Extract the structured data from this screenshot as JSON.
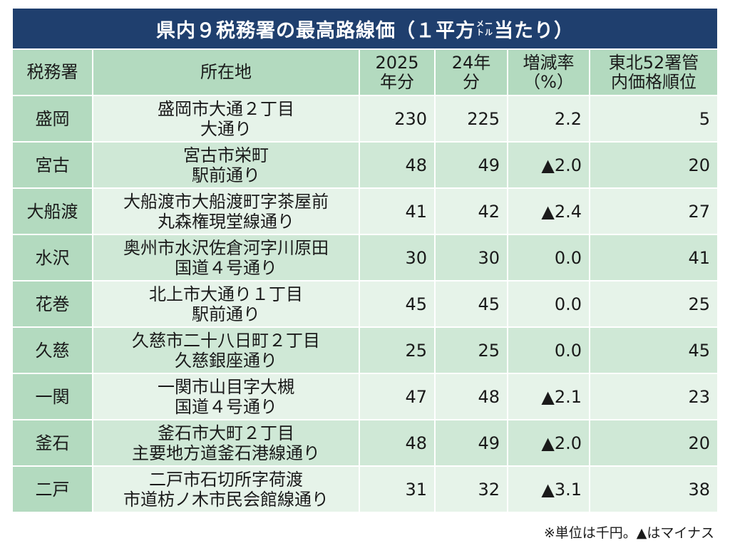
{
  "title": {
    "main": "県内９税務署の最高路線価（１平方",
    "unit_top": "メー",
    "unit_bottom": "トル",
    "suffix": "当たり）"
  },
  "headers": {
    "office": "税務署",
    "location": "所在地",
    "year2025_line1": "2025",
    "year2025_line2": "年分",
    "year24_line1": "24年",
    "year24_line2": "分",
    "change_line1": "増減率",
    "change_line2": "（%）",
    "rank_line1": "東北52署管",
    "rank_line2": "内価格順位"
  },
  "rows": [
    {
      "office": "盛岡",
      "loc1": "盛岡市大通２丁目",
      "loc2": "大通り",
      "v2025": "230",
      "v24": "225",
      "change": "2.2",
      "rank": "5"
    },
    {
      "office": "宮古",
      "loc1": "宮古市栄町",
      "loc2": "駅前通り",
      "v2025": "48",
      "v24": "49",
      "change": "▲2.0",
      "rank": "20"
    },
    {
      "office": "大船渡",
      "loc1": "大船渡市大船渡町字茶屋前",
      "loc2": "丸森権現堂線通り",
      "v2025": "41",
      "v24": "42",
      "change": "▲2.4",
      "rank": "27"
    },
    {
      "office": "水沢",
      "loc1": "奥州市水沢佐倉河字川原田",
      "loc2": "国道４号通り",
      "v2025": "30",
      "v24": "30",
      "change": "0.0",
      "rank": "41"
    },
    {
      "office": "花巻",
      "loc1": "北上市大通り１丁目",
      "loc2": "駅前通り",
      "v2025": "45",
      "v24": "45",
      "change": "0.0",
      "rank": "25"
    },
    {
      "office": "久慈",
      "loc1": "久慈市二十八日町２丁目",
      "loc2": "久慈銀座通り",
      "v2025": "25",
      "v24": "25",
      "change": "0.0",
      "rank": "45"
    },
    {
      "office": "一関",
      "loc1": "一関市山目字大槻",
      "loc2": "国道４号通り",
      "v2025": "47",
      "v24": "48",
      "change": "▲2.1",
      "rank": "23"
    },
    {
      "office": "釜石",
      "loc1": "釜石市大町２丁目",
      "loc2": "主要地方道釜石港線通り",
      "v2025": "48",
      "v24": "49",
      "change": "▲2.0",
      "rank": "20"
    },
    {
      "office": "二戸",
      "loc1": "二戸市石切所字荷渡",
      "loc2": "市道枋ノ木市民会館線通り",
      "v2025": "31",
      "v24": "32",
      "change": "▲3.1",
      "rank": "38"
    }
  ],
  "footnote": "※単位は千円。▲はマイナス",
  "colors": {
    "title_bg": "#1f3f6e",
    "header_bg": "#b3dabf",
    "row_light": "#e6f3e9",
    "row_mid": "#cfe8d6"
  }
}
